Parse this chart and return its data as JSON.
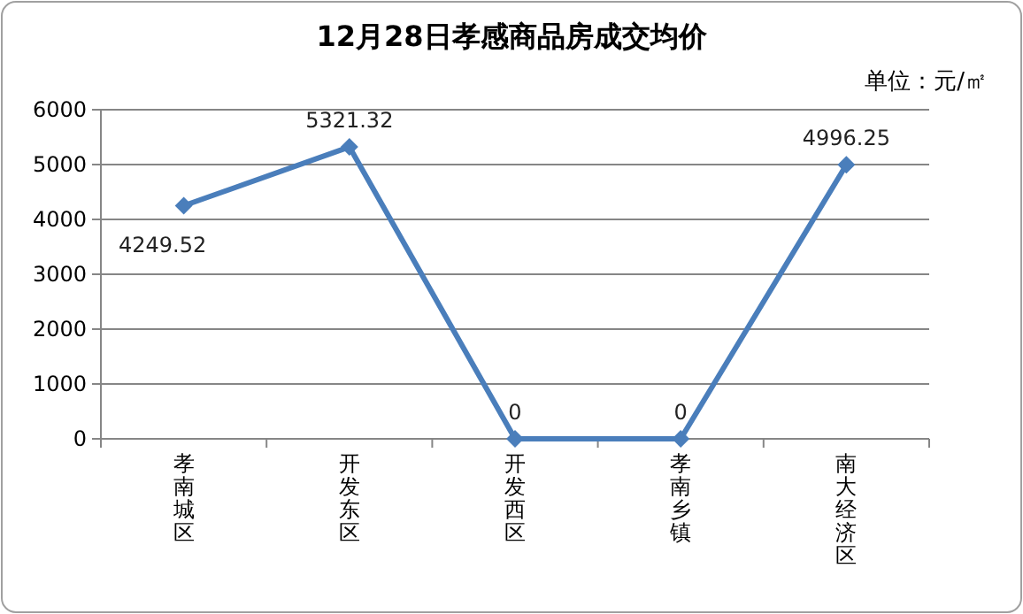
{
  "chart_data": {
    "type": "line",
    "title": "12月28日孝感商品房成交均价",
    "annotations": [
      "单位：元/㎡"
    ],
    "categories": [
      "孝南城区",
      "开发东区",
      "开发西区",
      "孝南乡镇",
      "南大经济区"
    ],
    "series": [
      {
        "color": "#4a7ebb",
        "values": [
          4249.52,
          5321.32,
          0,
          0,
          4996.25
        ]
      }
    ],
    "ylim": [
      0,
      6000
    ],
    "yticks": [
      0,
      1000,
      2000,
      3000,
      4000,
      5000,
      6000
    ],
    "grid": "y",
    "marker": "diamond",
    "line_style": "solid",
    "data_labels": true
  }
}
